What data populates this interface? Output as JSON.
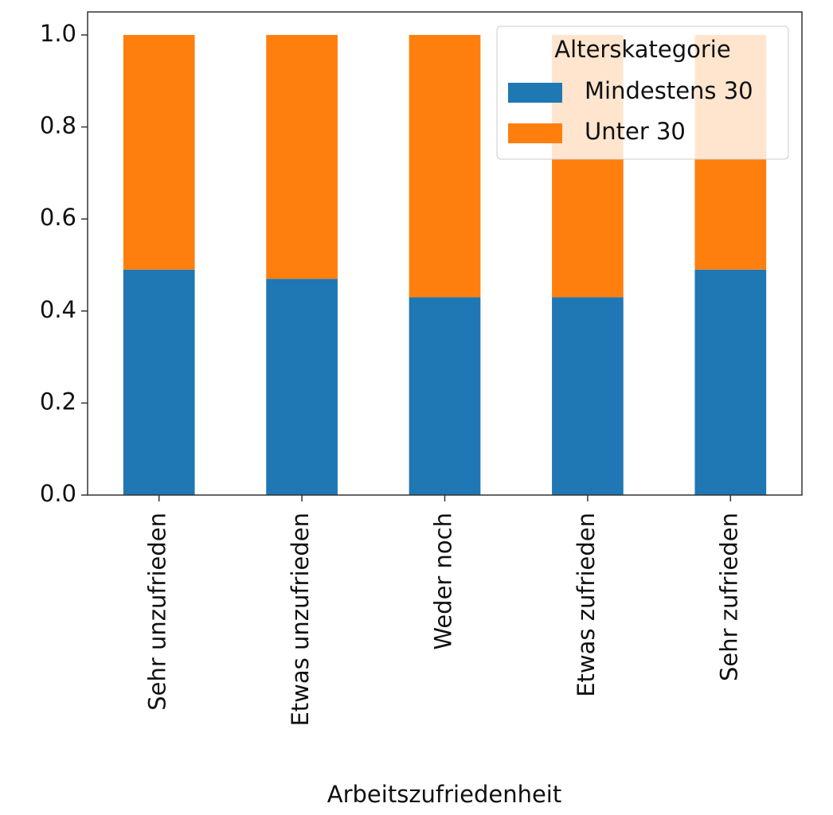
{
  "chart_data": {
    "type": "stacked_bar",
    "x_label": "Arbeitszufriedenheit",
    "categories": [
      "Sehr unzufrieden",
      "Etwas unzufrieden",
      "Weder noch",
      "Etwas zufrieden",
      "Sehr zufrieden"
    ],
    "series": [
      {
        "name": "Mindestens 30",
        "color": "#1f77b4",
        "values": [
          0.49,
          0.47,
          0.43,
          0.43,
          0.49
        ]
      },
      {
        "name": "Unter 30",
        "color": "#ff7f0e",
        "values": [
          0.51,
          0.53,
          0.57,
          0.57,
          0.51
        ]
      }
    ],
    "legend_title": "Alterskategorie",
    "legend_position": "upper right",
    "ylim": [
      0,
      1.05
    ],
    "yticks": [
      {
        "value": 0,
        "label": "0.0"
      },
      0.2,
      0.4,
      0.6,
      0.8,
      {
        "value": 1,
        "label": "1.0"
      }
    ],
    "grid": false
  }
}
